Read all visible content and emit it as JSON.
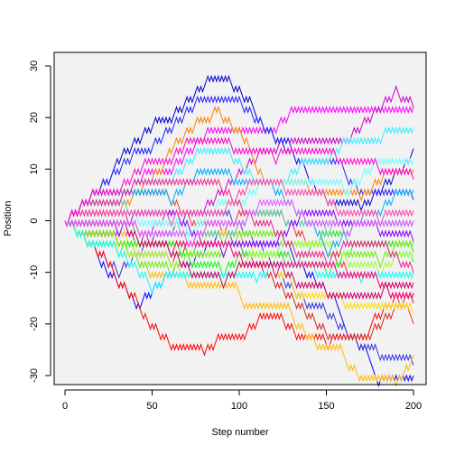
{
  "chart_data": {
    "type": "line",
    "title": "",
    "xlabel": "Step number",
    "ylabel": "Position",
    "xlim": [
      0,
      200
    ],
    "ylim": [
      -30,
      30
    ],
    "x_ticks": [
      0,
      50,
      100,
      150,
      200
    ],
    "y_ticks": [
      -30,
      -20,
      -10,
      0,
      10,
      20,
      30
    ],
    "grid": false,
    "legend": "none",
    "n_steps": 200,
    "step_size": 1,
    "start_position": 0,
    "series": [
      {
        "color": "#ff00ff",
        "waypoints": [
          [
            0,
            0
          ],
          [
            30,
            4
          ],
          [
            60,
            10
          ],
          [
            100,
            18
          ],
          [
            120,
            19
          ],
          [
            150,
            22
          ],
          [
            170,
            21
          ],
          [
            200,
            22
          ]
        ]
      },
      {
        "color": "#cc00cc",
        "waypoints": [
          [
            0,
            0
          ],
          [
            40,
            -4
          ],
          [
            80,
            2
          ],
          [
            120,
            14
          ],
          [
            160,
            16
          ],
          [
            190,
            26
          ],
          [
            200,
            22
          ]
        ]
      },
      {
        "color": "#0000cc",
        "waypoints": [
          [
            0,
            0
          ],
          [
            30,
            12
          ],
          [
            60,
            20
          ],
          [
            90,
            28
          ],
          [
            110,
            20
          ],
          [
            140,
            8
          ],
          [
            170,
            2
          ],
          [
            200,
            14
          ]
        ]
      },
      {
        "color": "#2020ff",
        "waypoints": [
          [
            0,
            0
          ],
          [
            20,
            6
          ],
          [
            50,
            14
          ],
          [
            80,
            24
          ],
          [
            100,
            24
          ],
          [
            130,
            14
          ],
          [
            160,
            10
          ],
          [
            200,
            4
          ]
        ]
      },
      {
        "color": "#0000ff",
        "waypoints": [
          [
            0,
            0
          ],
          [
            20,
            -8
          ],
          [
            40,
            -16
          ],
          [
            70,
            -8
          ],
          [
            100,
            -2
          ],
          [
            130,
            -6
          ],
          [
            160,
            -20
          ],
          [
            180,
            -32
          ],
          [
            200,
            -30
          ]
        ]
      },
      {
        "color": "#3333dd",
        "waypoints": [
          [
            0,
            0
          ],
          [
            30,
            -10
          ],
          [
            60,
            -2
          ],
          [
            90,
            2
          ],
          [
            120,
            -10
          ],
          [
            150,
            -18
          ],
          [
            180,
            -26
          ],
          [
            200,
            -28
          ]
        ]
      },
      {
        "color": "#ff0000",
        "waypoints": [
          [
            0,
            0
          ],
          [
            30,
            -12
          ],
          [
            45,
            -20
          ],
          [
            60,
            -24
          ],
          [
            80,
            -26
          ],
          [
            100,
            -22
          ],
          [
            120,
            -18
          ],
          [
            150,
            -24
          ],
          [
            175,
            -22
          ],
          [
            200,
            -14
          ]
        ]
      },
      {
        "color": "#dd2222",
        "waypoints": [
          [
            0,
            0
          ],
          [
            30,
            -4
          ],
          [
            60,
            -8
          ],
          [
            90,
            -2
          ],
          [
            120,
            -12
          ],
          [
            150,
            -22
          ],
          [
            175,
            -24
          ],
          [
            200,
            -14
          ]
        ]
      },
      {
        "color": "#ee3333",
        "waypoints": [
          [
            0,
            0
          ],
          [
            30,
            6
          ],
          [
            60,
            4
          ],
          [
            90,
            -2
          ],
          [
            120,
            2
          ],
          [
            150,
            -6
          ],
          [
            180,
            -12
          ],
          [
            200,
            -20
          ]
        ]
      },
      {
        "color": "#ff8000",
        "waypoints": [
          [
            0,
            0
          ],
          [
            30,
            2
          ],
          [
            60,
            14
          ],
          [
            85,
            20
          ],
          [
            110,
            10
          ],
          [
            140,
            6
          ],
          [
            170,
            4
          ],
          [
            200,
            10
          ]
        ]
      },
      {
        "color": "#ffbb00",
        "waypoints": [
          [
            0,
            0
          ],
          [
            40,
            -6
          ],
          [
            70,
            -12
          ],
          [
            100,
            -14
          ],
          [
            130,
            -18
          ],
          [
            160,
            -26
          ],
          [
            190,
            -32
          ],
          [
            200,
            -26
          ]
        ]
      },
      {
        "color": "#ffdd00",
        "waypoints": [
          [
            0,
            0
          ],
          [
            30,
            -2
          ],
          [
            70,
            -6
          ],
          [
            100,
            -2
          ],
          [
            130,
            -12
          ],
          [
            160,
            -16
          ],
          [
            200,
            -18
          ]
        ]
      },
      {
        "color": "#00ff00",
        "waypoints": [
          [
            0,
            0
          ],
          [
            30,
            -6
          ],
          [
            60,
            -4
          ],
          [
            90,
            -10
          ],
          [
            120,
            -6
          ],
          [
            150,
            -10
          ],
          [
            180,
            -4
          ],
          [
            200,
            -8
          ]
        ]
      },
      {
        "color": "#22dd22",
        "waypoints": [
          [
            0,
            0
          ],
          [
            40,
            -2
          ],
          [
            70,
            -6
          ],
          [
            100,
            -4
          ],
          [
            130,
            -8
          ],
          [
            160,
            -2
          ],
          [
            200,
            -6
          ]
        ]
      },
      {
        "color": "#66ee00",
        "waypoints": [
          [
            0,
            0
          ],
          [
            30,
            -4
          ],
          [
            60,
            -10
          ],
          [
            90,
            -6
          ],
          [
            120,
            -2
          ],
          [
            150,
            -6
          ],
          [
            180,
            -8
          ],
          [
            200,
            -4
          ]
        ]
      },
      {
        "color": "#99ff33",
        "waypoints": [
          [
            0,
            0
          ],
          [
            30,
            -6
          ],
          [
            60,
            -8
          ],
          [
            90,
            -12
          ],
          [
            120,
            -6
          ],
          [
            150,
            -4
          ],
          [
            180,
            -10
          ],
          [
            200,
            -6
          ]
        ]
      },
      {
        "color": "#44ccaa",
        "waypoints": [
          [
            0,
            0
          ],
          [
            30,
            4
          ],
          [
            60,
            0
          ],
          [
            90,
            -4
          ],
          [
            120,
            2
          ],
          [
            150,
            -2
          ],
          [
            200,
            0
          ]
        ]
      },
      {
        "color": "#00ffff",
        "waypoints": [
          [
            0,
            0
          ],
          [
            30,
            -6
          ],
          [
            50,
            -14
          ],
          [
            80,
            -10
          ],
          [
            110,
            -12
          ],
          [
            140,
            -8
          ],
          [
            170,
            -12
          ],
          [
            200,
            -10
          ]
        ]
      },
      {
        "color": "#33eeff",
        "waypoints": [
          [
            0,
            0
          ],
          [
            30,
            4
          ],
          [
            60,
            8
          ],
          [
            90,
            14
          ],
          [
            120,
            6
          ],
          [
            150,
            12
          ],
          [
            180,
            16
          ],
          [
            200,
            18
          ]
        ]
      },
      {
        "color": "#66ffff",
        "waypoints": [
          [
            0,
            0
          ],
          [
            40,
            2
          ],
          [
            70,
            -2
          ],
          [
            100,
            4
          ],
          [
            130,
            8
          ],
          [
            160,
            6
          ],
          [
            200,
            12
          ]
        ]
      },
      {
        "color": "#00aaff",
        "waypoints": [
          [
            0,
            0
          ],
          [
            30,
            6
          ],
          [
            60,
            4
          ],
          [
            90,
            10
          ],
          [
            120,
            6
          ],
          [
            150,
            -6
          ],
          [
            180,
            2
          ],
          [
            200,
            6
          ]
        ]
      },
      {
        "color": "#8800ff",
        "waypoints": [
          [
            0,
            0
          ],
          [
            30,
            -2
          ],
          [
            60,
            2
          ],
          [
            90,
            -6
          ],
          [
            120,
            -4
          ],
          [
            150,
            2
          ],
          [
            180,
            -2
          ],
          [
            200,
            -4
          ]
        ]
      },
      {
        "color": "#ff0080",
        "waypoints": [
          [
            0,
            0
          ],
          [
            30,
            2
          ],
          [
            60,
            -6
          ],
          [
            90,
            -4
          ],
          [
            120,
            -10
          ],
          [
            150,
            -8
          ],
          [
            180,
            -12
          ],
          [
            200,
            -16
          ]
        ]
      },
      {
        "color": "#ee2288",
        "waypoints": [
          [
            0,
            0
          ],
          [
            30,
            4
          ],
          [
            60,
            8
          ],
          [
            90,
            6
          ],
          [
            120,
            -2
          ],
          [
            150,
            -8
          ],
          [
            180,
            -4
          ],
          [
            200,
            -10
          ]
        ]
      },
      {
        "color": "#ff44aa",
        "waypoints": [
          [
            0,
            0
          ],
          [
            30,
            2
          ],
          [
            60,
            0
          ],
          [
            90,
            2
          ],
          [
            120,
            8
          ],
          [
            150,
            4
          ],
          [
            180,
            0
          ],
          [
            200,
            2
          ]
        ]
      },
      {
        "color": "#cc0066",
        "waypoints": [
          [
            0,
            0
          ],
          [
            30,
            0
          ],
          [
            60,
            -6
          ],
          [
            90,
            -12
          ],
          [
            120,
            -8
          ],
          [
            150,
            -14
          ],
          [
            180,
            -14
          ],
          [
            200,
            -12
          ]
        ]
      },
      {
        "color": "#ff00cc",
        "waypoints": [
          [
            0,
            0
          ],
          [
            30,
            6
          ],
          [
            60,
            12
          ],
          [
            90,
            16
          ],
          [
            120,
            12
          ],
          [
            150,
            14
          ],
          [
            180,
            10
          ],
          [
            200,
            8
          ]
        ]
      },
      {
        "color": "#dd55ff",
        "waypoints": [
          [
            0,
            0
          ],
          [
            40,
            0
          ],
          [
            70,
            -4
          ],
          [
            100,
            0
          ],
          [
            130,
            4
          ],
          [
            160,
            -2
          ],
          [
            200,
            0
          ]
        ]
      }
    ]
  }
}
